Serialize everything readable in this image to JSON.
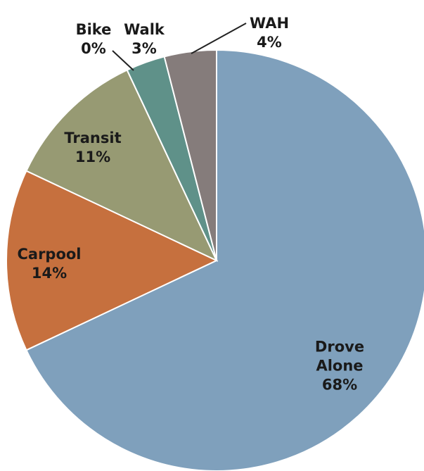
{
  "chart_data": {
    "type": "pie",
    "categories": [
      "Drove Alone",
      "Carpool",
      "Transit",
      "Bike",
      "Walk",
      "WAH"
    ],
    "values": [
      68,
      14,
      11,
      0,
      3,
      4
    ],
    "value_labels": [
      "68%",
      "14%",
      "11%",
      "0%",
      "3%",
      "4%"
    ],
    "colors": [
      "#7fa0bc",
      "#c6703e",
      "#979a73",
      "#6a9a8a",
      "#5f9189",
      "#857c7b"
    ]
  }
}
